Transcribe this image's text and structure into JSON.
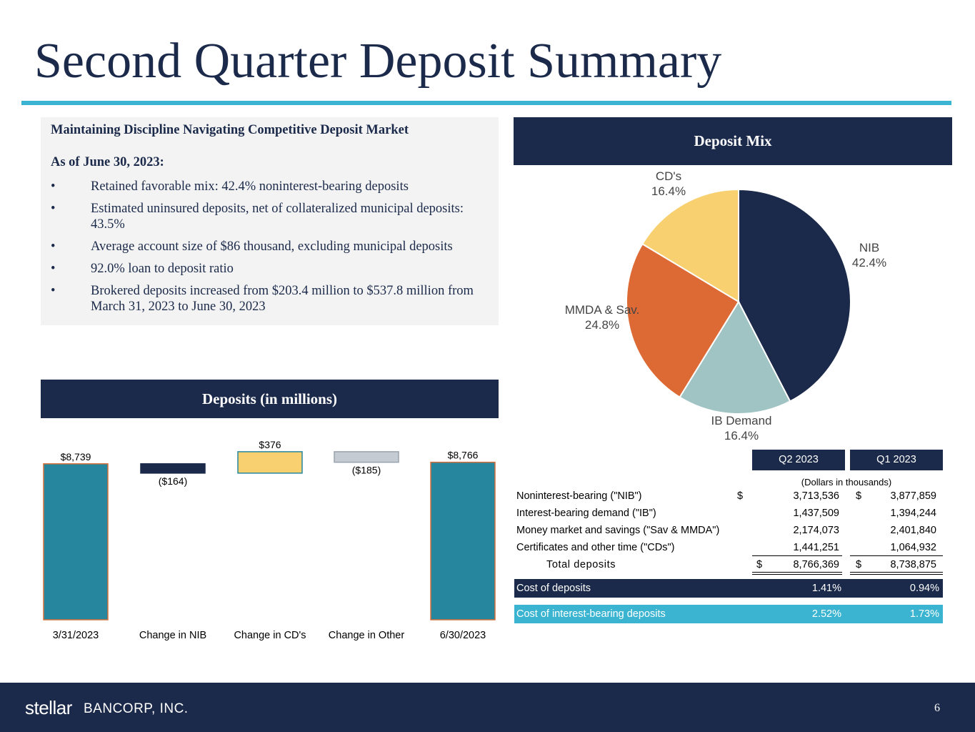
{
  "title": "Second Quarter Deposit Summary",
  "highlights": {
    "heading": "Maintaining Discipline Navigating Competitive Deposit Market",
    "subheading": "As of June 30, 2023:",
    "bullets": [
      "Retained favorable mix: 42.4% noninterest-bearing deposits",
      "Estimated uninsured deposits, net of collateralized municipal deposits: 43.5%",
      "Average account size of $86 thousand, excluding municipal deposits",
      "92.0% loan to deposit ratio",
      "Brokered deposits increased from $203.4 million to $537.8 million from March 31, 2023 to June 30, 2023"
    ]
  },
  "chart_data": [
    {
      "type": "waterfall",
      "title": "Deposits (in millions)",
      "categories": [
        "3/31/2023",
        "Change in NIB",
        "Change in CD's",
        "Change in Other",
        "6/30/2023"
      ],
      "values": [
        8739,
        -164,
        376,
        -185,
        8766
      ],
      "value_labels": [
        "$8,739",
        "($164)",
        "$376",
        "($185)",
        "$8,766"
      ],
      "totals": [
        true,
        false,
        false,
        false,
        true
      ],
      "colors": [
        "#26869e",
        "#1b2a4a",
        "#f8d070",
        "#c5cbd3",
        "#26869e"
      ],
      "ylim": [
        6000,
        9000
      ]
    },
    {
      "type": "pie",
      "title": "Deposit Mix",
      "categories": [
        "NIB",
        "IB Demand",
        "MMDA & Sav.",
        "CD's"
      ],
      "values": [
        42.4,
        16.4,
        24.8,
        16.4
      ],
      "value_labels": [
        "42.4%",
        "16.4%",
        "24.8%",
        "16.4%"
      ],
      "colors": [
        "#1b2a4a",
        "#a0c4c4",
        "#dd6a35",
        "#f8d070"
      ]
    }
  ],
  "table": {
    "columns": [
      "Q2 2023",
      "Q1 2023"
    ],
    "note": "(Dollars in thousands)",
    "currency": "$",
    "rows": [
      [
        "Noninterest-bearing (\"NIB\")",
        "3,713,536",
        "3,877,859"
      ],
      [
        "Interest-bearing demand (\"IB\")",
        "1,437,509",
        "1,394,244"
      ],
      [
        "Money market and savings (\"Sav & MMDA\")",
        "2,174,073",
        "2,401,840"
      ],
      [
        "Certificates and other time (\"CDs\")",
        "1,441,251",
        "1,064,932"
      ]
    ],
    "total": [
      "Total deposits",
      "8,766,369",
      "8,738,875"
    ],
    "cost_rows": [
      [
        "Cost of deposits",
        "1.41%",
        "0.94%"
      ],
      [
        "Cost of interest-bearing deposits",
        "2.52%",
        "1.73%"
      ]
    ]
  },
  "footer": {
    "logo": "stellar",
    "company": "BANCORP, INC.",
    "page": "6"
  }
}
